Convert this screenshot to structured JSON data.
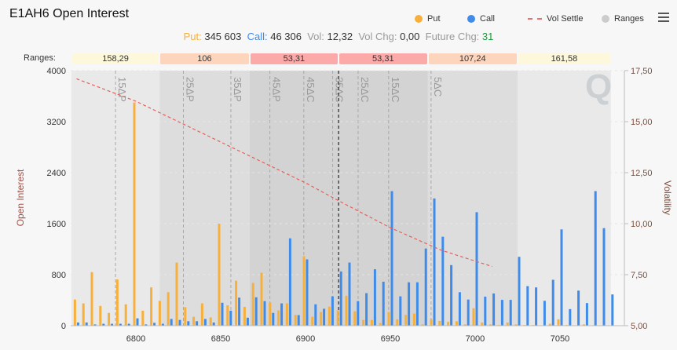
{
  "title": "E1AH6 Open Interest",
  "legend": [
    {
      "label": "Put",
      "color": "#f7b03c"
    },
    {
      "label": "Call",
      "color": "#3f8bea"
    },
    {
      "label": "Vol Settle",
      "color": "#e87070"
    },
    {
      "label": "Ranges",
      "color": "#cccccc"
    }
  ],
  "menu_icon": "hamburger-menu-icon",
  "stats": {
    "put_label": "Put:",
    "put_value": "345 603",
    "call_label": "Call:",
    "call_value": "46 306",
    "vol_label": "Vol:",
    "vol_value": "12,32",
    "volchg_label": "Vol Chg:",
    "volchg_value": "0,00",
    "futchg_label": "Future Chg:",
    "futchg_value": "31"
  },
  "ranges": {
    "label": "Ranges:",
    "cells": [
      {
        "text": "158,29",
        "from": 6762,
        "to": 6814,
        "color": "#fdf8dc",
        "band": "#e9e9e9"
      },
      {
        "text": "106",
        "from": 6814,
        "to": 6867,
        "color": "#fdd5bd",
        "band": "#dddddd"
      },
      {
        "text": "53,31",
        "from": 6867,
        "to": 6919.5,
        "color": "#fca9a9",
        "band": "#d3d3d3"
      },
      {
        "text": "53,31",
        "from": 6919.5,
        "to": 6972,
        "color": "#fca9a9",
        "band": "#d3d3d3"
      },
      {
        "text": "107,24",
        "from": 6972,
        "to": 7025,
        "color": "#fdd5bd",
        "band": "#dddddd"
      },
      {
        "text": "161,58",
        "from": 7025,
        "to": 7080,
        "color": "#fdf8dc",
        "band": "#e9e9e9"
      }
    ]
  },
  "chart_data": {
    "type": "bar",
    "title": "E1AH6 Open Interest",
    "ylabel": "Open Interest",
    "y2label": "Volatility",
    "xlim": [
      6762,
      7088
    ],
    "ylim": [
      0,
      4000
    ],
    "y2lim": [
      5,
      17.5
    ],
    "xticks": [
      {
        "v": 6800,
        "label": "6800"
      },
      {
        "v": 6850,
        "label": "6850"
      },
      {
        "v": 6900,
        "label": "6900"
      },
      {
        "v": 6950,
        "label": "6950"
      },
      {
        "v": 7000,
        "label": "7000"
      },
      {
        "v": 7050,
        "label": "7050"
      }
    ],
    "yticks": [
      {
        "v": 0,
        "label": "0"
      },
      {
        "v": 800,
        "label": "800"
      },
      {
        "v": 1600,
        "label": "1600"
      },
      {
        "v": 2400,
        "label": "2400"
      },
      {
        "v": 3200,
        "label": "3200"
      },
      {
        "v": 4000,
        "label": "4000"
      }
    ],
    "y2ticks": [
      {
        "v": 5,
        "label": "5,00"
      },
      {
        "v": 7.5,
        "label": "7,50"
      },
      {
        "v": 10,
        "label": "10,00"
      },
      {
        "v": 12.5,
        "label": "12,50"
      },
      {
        "v": 15,
        "label": "15,00"
      },
      {
        "v": 17.5,
        "label": "17,50"
      }
    ],
    "strikes": [
      6765,
      6770,
      6775,
      6780,
      6785,
      6790,
      6795,
      6800,
      6805,
      6810,
      6815,
      6820,
      6825,
      6830,
      6835,
      6840,
      6845,
      6850,
      6855,
      6860,
      6865,
      6870,
      6875,
      6880,
      6885,
      6890,
      6895,
      6900,
      6905,
      6910,
      6915,
      6920,
      6925,
      6930,
      6935,
      6940,
      6945,
      6950,
      6955,
      6960,
      6965,
      6970,
      6975,
      6980,
      6985,
      6990,
      6995,
      7000,
      7005,
      7010,
      7015,
      7020,
      7025,
      7030,
      7035,
      7040,
      7045,
      7050,
      7055,
      7060,
      7065,
      7070,
      7075,
      7080
    ],
    "series": [
      {
        "name": "Put",
        "values": [
          410,
          350,
          840,
          310,
          200,
          725,
          335,
          3500,
          235,
          600,
          390,
          525,
          990,
          290,
          140,
          350,
          130,
          1600,
          320,
          705,
          295,
          670,
          830,
          365,
          240,
          350,
          170,
          1090,
          140,
          215,
          300,
          240,
          470,
          225,
          90,
          90,
          40,
          215,
          100,
          170,
          190,
          20,
          100,
          75,
          60,
          70,
          20,
          275,
          50,
          20,
          10,
          50,
          20,
          10,
          10,
          5,
          30,
          100,
          10,
          2,
          20,
          2,
          2,
          2
        ]
      },
      {
        "name": "Call",
        "values": [
          50,
          50,
          20,
          30,
          30,
          30,
          30,
          115,
          20,
          45,
          30,
          105,
          90,
          70,
          70,
          105,
          50,
          360,
          235,
          440,
          125,
          445,
          385,
          200,
          350,
          1370,
          165,
          1040,
          335,
          265,
          460,
          850,
          990,
          385,
          510,
          885,
          690,
          2110,
          460,
          680,
          680,
          1210,
          1995,
          1395,
          950,
          525,
          410,
          1780,
          455,
          505,
          405,
          405,
          1080,
          620,
          600,
          390,
          720,
          1510,
          260,
          550,
          355,
          2110,
          1530,
          490
        ]
      }
    ],
    "vol_settle": {
      "name": "Vol Settle",
      "x": [
        6765,
        6800,
        6850,
        6900,
        6920,
        6950,
        6980,
        7010
      ],
      "y": [
        17.1,
        16.0,
        14.0,
        12.0,
        11.1,
        9.8,
        8.7,
        7.9
      ]
    },
    "future_price": 6919.5,
    "delta_lines": [
      {
        "label": "15ΔP",
        "x": 6788
      },
      {
        "label": "25ΔP",
        "x": 6828
      },
      {
        "label": "35ΔP",
        "x": 6856
      },
      {
        "label": "45ΔP",
        "x": 6879
      },
      {
        "label": "45ΔC",
        "x": 6899
      },
      {
        "label": "35ΔC",
        "x": 6916
      },
      {
        "label": "25ΔC",
        "x": 6931
      },
      {
        "label": "15ΔC",
        "x": 6949
      },
      {
        "label": "5ΔC",
        "x": 6974
      }
    ]
  }
}
